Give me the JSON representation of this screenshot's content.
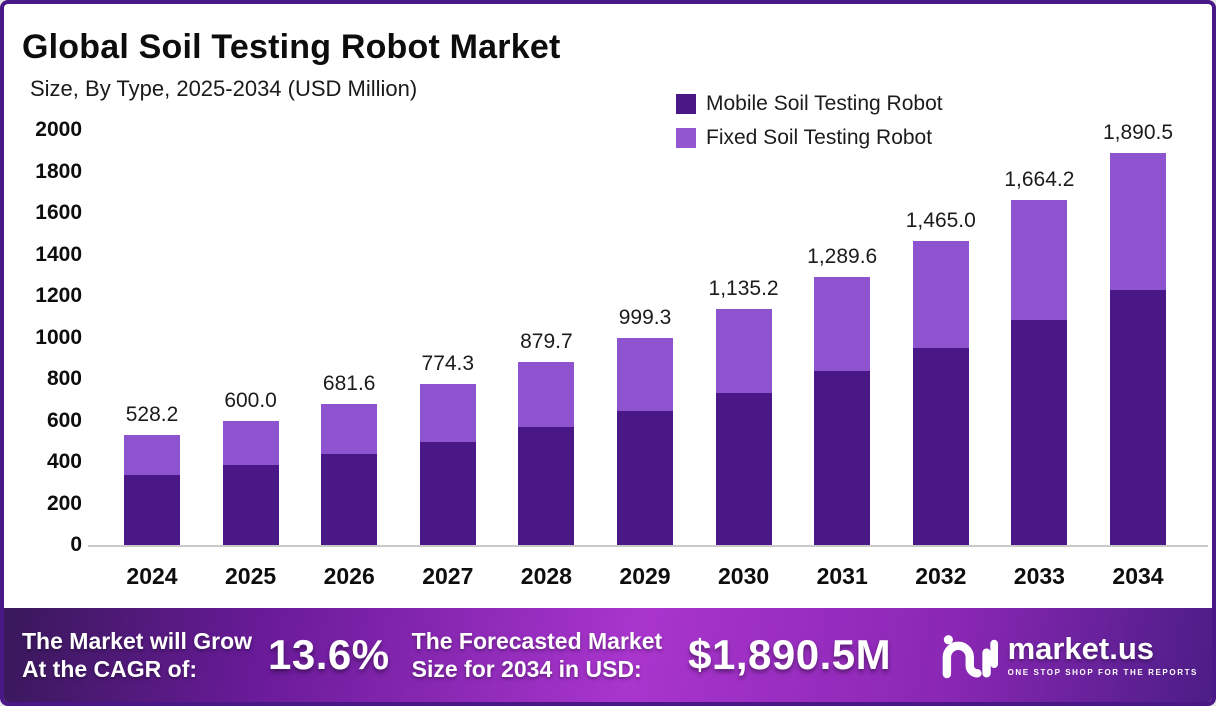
{
  "header": {
    "title": "Global Soil Testing Robot Market",
    "subtitle": "Size, By Type, 2025-2034 (USD Million)"
  },
  "legend": {
    "items": [
      {
        "label": "Mobile Soil Testing Robot",
        "color": "#4a1786"
      },
      {
        "label": "Fixed Soil Testing Robot",
        "color": "#9257d1"
      }
    ]
  },
  "chart_data": {
    "type": "bar",
    "stacked": true,
    "title": "Global Soil Testing Robot Market Size, By Type, 2025-2034 (USD Million)",
    "categories": [
      "2024",
      "2025",
      "2026",
      "2027",
      "2028",
      "2029",
      "2030",
      "2031",
      "2032",
      "2033",
      "2034"
    ],
    "series": [
      {
        "name": "Mobile Soil Testing Robot",
        "color": "#4a1786",
        "estimated_from_pixels": true,
        "values": [
          335,
          385,
          437,
          497,
          570,
          645,
          733,
          838,
          950,
          1085,
          1230
        ]
      },
      {
        "name": "Fixed Soil Testing Robot",
        "color": "#8e54cf",
        "estimated_from_pixels": true,
        "values": [
          193.2,
          215.0,
          244.6,
          277.3,
          309.7,
          354.3,
          402.2,
          451.6,
          515.0,
          579.2,
          660.5
        ]
      }
    ],
    "totals": [
      528.2,
      600.0,
      681.6,
      774.3,
      879.7,
      999.3,
      1135.2,
      1289.6,
      1465.0,
      1664.2,
      1890.5
    ],
    "total_labels": [
      "528.2",
      "600.0",
      "681.6",
      "774.3",
      "879.7",
      "999.3",
      "1,135.2",
      "1,289.6",
      "1,465.0",
      "1,664.2",
      "1,890.5"
    ],
    "xlabel": "",
    "ylabel": "",
    "ylim": [
      0,
      2000
    ],
    "ytick_step": 200,
    "grid": false,
    "legend_position": "top-right"
  },
  "banner": {
    "cagr_line1": "The Market will Grow",
    "cagr_line2": "At the CAGR of:",
    "cagr_value": "13.6%",
    "forecast_line1": "The Forecasted Market",
    "forecast_line2": "Size for 2034 in USD:",
    "forecast_value": "$1,890.5M",
    "logo_text": "market.us",
    "logo_tagline": "ONE STOP SHOP FOR THE REPORTS"
  },
  "colors": {
    "mobile_bar": "#4a1786",
    "fixed_bar": "#8e54cf",
    "frame_border": "#4a1786",
    "axis_line": "#c9c9c9",
    "banner_gradient_left": "#38185a",
    "banner_gradient_center": "#a935cd",
    "banner_gradient_right": "#4c1d86"
  }
}
